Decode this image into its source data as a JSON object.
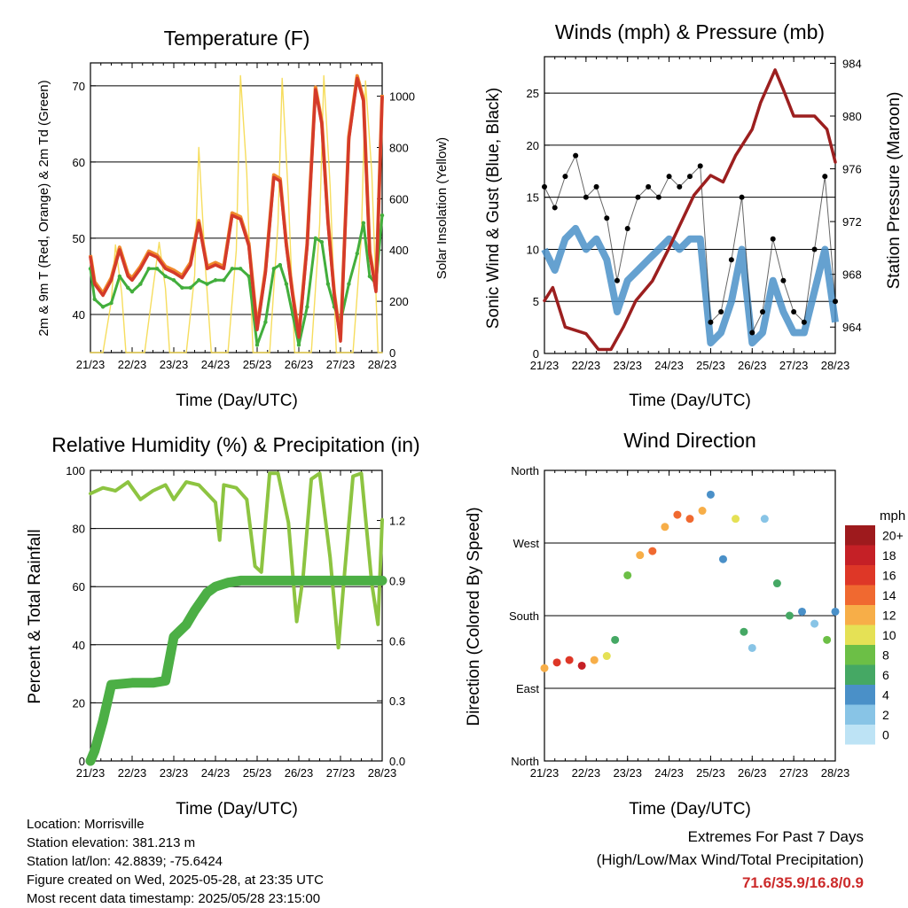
{
  "x_ticks": [
    "21/23",
    "22/23",
    "23/23",
    "24/23",
    "25/23",
    "26/23",
    "27/23",
    "28/23"
  ],
  "x_label": "Time (Day/UTC)",
  "panels": {
    "temperature": {
      "title": "Temperature (F)",
      "ylabel_left": "2m & 9m T (Red, Orange) & 2m Td (Green)",
      "ylabel_right": "Solar Insolation (Yellow)",
      "yticks_left": [
        "40",
        "50",
        "60",
        "70"
      ],
      "yticks_right": [
        "0",
        "200",
        "400",
        "600",
        "800",
        "1000"
      ]
    },
    "winds": {
      "title": "Winds (mph) & Pressure (mb)",
      "ylabel_left": "Sonic Wind & Gust (Blue, Black)",
      "ylabel_right": "Station Pressure (Maroon)",
      "yticks_left": [
        "0",
        "5",
        "10",
        "15",
        "20",
        "25"
      ],
      "yticks_right": [
        "964",
        "968",
        "972",
        "976",
        "980",
        "984"
      ]
    },
    "humidity": {
      "title": "Relative Humidity (%) & Precipitation (in)",
      "ylabel_left": "Percent & Total Rainfall",
      "yticks_left": [
        "0",
        "20",
        "40",
        "60",
        "80",
        "100"
      ],
      "yticks_right": [
        "0.0",
        "0.3",
        "0.6",
        "0.9",
        "1.2"
      ]
    },
    "direction": {
      "title": "Wind Direction",
      "ylabel_left": "Direction (Colored By Speed)",
      "yticks_left": [
        "North",
        "East",
        "South",
        "West",
        "North"
      ],
      "colorbar_title": "mph",
      "colorbar_labels": [
        "0",
        "2",
        "4",
        "6",
        "8",
        "10",
        "12",
        "14",
        "16",
        "18",
        "20+"
      ],
      "colorbar_colors": [
        "#bde3f5",
        "#88c4e6",
        "#4a90c8",
        "#45a864",
        "#6cbf46",
        "#e5e155",
        "#f7ae48",
        "#f06930",
        "#de3727",
        "#c52026",
        "#9e1a1d"
      ]
    }
  },
  "info": {
    "location": "Location: Morrisville",
    "elevation": "Station elevation: 381.213 m",
    "latlon": "Station lat/lon: 42.8839; -75.6424",
    "created": "Figure created on Wed, 2025-05-28, at 23:35 UTC",
    "recent": "Most recent data timestamp: 2025/05/28 23:15:00"
  },
  "extremes": {
    "line1": "Extremes For Past 7 Days",
    "line2": "(High/Low/Max Wind/Total Precipitation)",
    "values": "71.6/35.9/16.8/0.9"
  },
  "chart_data": [
    {
      "type": "line",
      "title": "Temperature (F)",
      "xlabel": "Time (Day/UTC)",
      "ylabel": "2m & 9m T (Red, Orange) & 2m Td (Green)",
      "y2label": "Solar Insolation (Yellow)",
      "x": [
        21,
        21.5,
        22,
        22.5,
        23,
        23.5,
        24,
        24.5,
        25,
        25.5,
        26,
        26.5,
        27,
        27.5,
        28
      ],
      "ylim": [
        35,
        73
      ],
      "y2lim": [
        0,
        1130
      ],
      "series": [
        {
          "name": "2m T",
          "color": "#d43a2a",
          "axis": "left",
          "x": [
            21.0,
            21.1,
            21.3,
            21.5,
            21.7,
            21.9,
            22.0,
            22.2,
            22.4,
            22.6,
            22.8,
            23.0,
            23.2,
            23.4,
            23.6,
            23.8,
            24.0,
            24.2,
            24.4,
            24.6,
            24.8,
            25.0,
            25.2,
            25.4,
            25.55,
            25.7,
            25.85,
            26.0,
            26.2,
            26.4,
            26.55,
            26.7,
            26.85,
            27.0,
            27.2,
            27.4,
            27.55,
            27.7,
            27.85,
            28.0
          ],
          "values": [
            47.5,
            44,
            42.5,
            44.5,
            48.5,
            45,
            44.5,
            46,
            48,
            47.5,
            46,
            45.5,
            44.8,
            46.5,
            52,
            46,
            46.5,
            46,
            53,
            52.5,
            49,
            38,
            45.5,
            58,
            57.5,
            49,
            42.5,
            37,
            49,
            69.5,
            65,
            52,
            42.5,
            36.5,
            63,
            71,
            68,
            48,
            43,
            68.5
          ]
        },
        {
          "name": "2m Td",
          "color": "#42ae3c",
          "axis": "left",
          "x": [
            21.0,
            21.1,
            21.3,
            21.5,
            21.7,
            21.9,
            22.0,
            22.2,
            22.4,
            22.6,
            22.8,
            23.0,
            23.2,
            23.4,
            23.6,
            23.8,
            24.0,
            24.2,
            24.4,
            24.6,
            24.8,
            25.0,
            25.2,
            25.4,
            25.55,
            25.7,
            25.85,
            26.0,
            26.2,
            26.4,
            26.55,
            26.7,
            26.85,
            27.0,
            27.2,
            27.4,
            27.55,
            27.7,
            27.85,
            28.0
          ],
          "values": [
            46,
            42,
            41,
            41.5,
            45,
            43.5,
            43,
            44,
            46,
            46,
            45,
            44.5,
            43.5,
            43.5,
            44.5,
            44,
            44.5,
            44.5,
            46,
            46,
            45,
            36,
            39,
            46,
            46.5,
            44,
            40,
            36,
            41,
            50,
            49.5,
            44,
            41,
            39,
            44,
            48,
            52,
            45,
            44,
            53
          ]
        },
        {
          "name": "Solar Insolation",
          "color": "#f5d94d",
          "axis": "right",
          "x": [
            21.0,
            21.3,
            21.5,
            21.6,
            21.75,
            21.85,
            22.0,
            22.3,
            22.5,
            22.65,
            22.8,
            22.9,
            23.0,
            23.3,
            23.5,
            23.6,
            23.75,
            23.9,
            24.0,
            24.3,
            24.5,
            24.6,
            24.75,
            24.9,
            25.0,
            25.3,
            25.5,
            25.6,
            25.75,
            25.9,
            26.0,
            26.3,
            26.5,
            26.6,
            26.75,
            26.9,
            27.0,
            27.3,
            27.5,
            27.6,
            27.75,
            27.9,
            28.0
          ],
          "values": [
            0,
            0,
            200,
            420,
            230,
            0,
            0,
            0,
            250,
            430,
            250,
            0,
            0,
            0,
            300,
            800,
            350,
            0,
            0,
            0,
            400,
            1080,
            700,
            0,
            0,
            0,
            500,
            1070,
            600,
            0,
            0,
            0,
            500,
            1080,
            650,
            0,
            0,
            0,
            450,
            1060,
            700,
            0,
            0
          ]
        }
      ]
    },
    {
      "type": "line",
      "title": "Winds (mph) & Pressure (mb)",
      "xlabel": "Time (Day/UTC)",
      "ylabel": "Sonic Wind & Gust (Blue, Black)",
      "y2label": "Station Pressure (Maroon)",
      "ylim": [
        0,
        28.5
      ],
      "y2lim": [
        962,
        984.5
      ],
      "series": [
        {
          "name": "Sonic Wind",
          "color": "#4a90c8",
          "axis": "left",
          "x": [
            21.0,
            21.25,
            21.5,
            21.75,
            22.0,
            22.25,
            22.5,
            22.75,
            23.0,
            23.25,
            23.5,
            23.75,
            24.0,
            24.25,
            24.5,
            24.75,
            25.0,
            25.25,
            25.5,
            25.75,
            26.0,
            26.25,
            26.5,
            26.75,
            27.0,
            27.25,
            27.5,
            27.75,
            28.0
          ],
          "values": [
            10,
            8,
            11,
            12,
            10,
            11,
            9,
            4,
            7,
            8,
            9,
            10,
            11,
            10,
            11,
            11,
            1,
            2,
            5,
            10,
            1,
            2,
            7,
            4,
            2,
            2,
            6,
            10,
            3
          ]
        },
        {
          "name": "Gust",
          "color": "#000000",
          "axis": "left",
          "x": [
            21.0,
            21.25,
            21.5,
            21.75,
            22.0,
            22.25,
            22.5,
            22.75,
            23.0,
            23.25,
            23.5,
            23.75,
            24.0,
            24.25,
            24.5,
            24.75,
            25.0,
            25.25,
            25.5,
            25.75,
            26.0,
            26.25,
            26.5,
            26.75,
            27.0,
            27.25,
            27.5,
            27.75,
            28.0
          ],
          "values": [
            16,
            14,
            17,
            19,
            15,
            16,
            13,
            7,
            12,
            15,
            16,
            15,
            17,
            16,
            17,
            18,
            3,
            4,
            9,
            15,
            2,
            4,
            11,
            7,
            4,
            3,
            10,
            17,
            5
          ]
        },
        {
          "name": "Station Pressure",
          "color": "#9c1f1f",
          "axis": "right",
          "x": [
            21.0,
            21.2,
            21.5,
            22.0,
            22.3,
            22.6,
            22.9,
            23.2,
            23.6,
            24.0,
            24.3,
            24.6,
            25.0,
            25.3,
            25.6,
            26.0,
            26.2,
            26.55,
            26.75,
            27.0,
            27.5,
            27.8,
            28.0
          ],
          "values": [
            966,
            967,
            964,
            963.5,
            962.3,
            962.3,
            964,
            966,
            967.5,
            970,
            972,
            974,
            975.5,
            975,
            977,
            979,
            981,
            983.5,
            982,
            980,
            980,
            979,
            976.5
          ]
        }
      ]
    },
    {
      "type": "line",
      "title": "Relative Humidity (%) & Precipitation (in)",
      "xlabel": "Time (Day/UTC)",
      "ylabel": "Percent & Total Rainfall",
      "ylim": [
        0,
        100
      ],
      "y2lim": [
        0,
        1.45
      ],
      "series": [
        {
          "name": "Relative Humidity",
          "color": "#8dc441",
          "axis": "left",
          "x": [
            21.0,
            21.3,
            21.6,
            21.9,
            22.2,
            22.5,
            22.8,
            23.0,
            23.3,
            23.6,
            23.8,
            24.0,
            24.1,
            24.2,
            24.5,
            24.75,
            24.95,
            25.1,
            25.3,
            25.5,
            25.75,
            25.95,
            26.1,
            26.3,
            26.5,
            26.75,
            26.95,
            27.1,
            27.3,
            27.5,
            27.75,
            27.9,
            28.0
          ],
          "values": [
            92,
            94,
            93,
            96,
            90,
            93,
            95,
            90,
            96,
            95,
            92,
            89,
            76,
            95,
            94,
            90,
            67,
            65,
            99,
            99,
            82,
            48,
            63,
            97,
            99,
            70,
            39,
            65,
            98,
            99,
            61,
            47,
            83
          ]
        },
        {
          "name": "Total Precipitation",
          "color": "#4caf45",
          "axis": "right",
          "x": [
            21.0,
            21.1,
            21.3,
            21.5,
            22.0,
            22.5,
            22.8,
            23.0,
            23.3,
            23.5,
            23.8,
            24.0,
            24.3,
            24.6,
            25.0,
            26.0,
            27.0,
            28.0
          ],
          "values": [
            0,
            0.05,
            0.2,
            0.38,
            0.39,
            0.39,
            0.4,
            0.62,
            0.68,
            0.75,
            0.84,
            0.87,
            0.89,
            0.9,
            0.9,
            0.9,
            0.9,
            0.9
          ]
        }
      ]
    },
    {
      "type": "scatter",
      "title": "Wind Direction",
      "xlabel": "Time (Day/UTC)",
      "ylabel": "Direction (Colored By Speed)",
      "yticks": [
        "North",
        "East",
        "South",
        "West",
        "North"
      ],
      "colorbar": "mph",
      "series": [
        {
          "name": "Direction",
          "x": [
            21.0,
            21.3,
            21.6,
            21.9,
            22.2,
            22.5,
            22.7,
            23.0,
            23.3,
            23.6,
            23.9,
            24.2,
            24.5,
            24.8,
            25.0,
            25.3,
            25.6,
            25.8,
            26.0,
            26.3,
            26.6,
            26.9,
            27.2,
            27.5,
            27.8,
            28.0
          ],
          "values": [
            115,
            122,
            125,
            118,
            125,
            130,
            150,
            230,
            255,
            260,
            290,
            305,
            300,
            310,
            330,
            250,
            300,
            160,
            140,
            300,
            220,
            180,
            185,
            170,
            150,
            185
          ],
          "speed": [
            12,
            16,
            15,
            17,
            11,
            9,
            5,
            8,
            12,
            14,
            12,
            13,
            13,
            12,
            3,
            3,
            9,
            6,
            2,
            2,
            5,
            5,
            3,
            2,
            8,
            4
          ]
        }
      ]
    }
  ]
}
